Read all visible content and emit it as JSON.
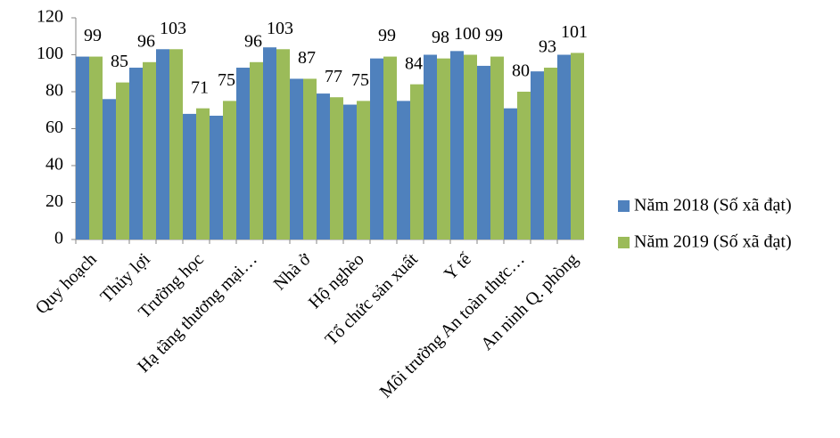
{
  "chart_data": {
    "type": "bar",
    "categories": [
      "Quy hoạch",
      null,
      "Thủy lợi",
      null,
      "Trường học",
      null,
      "Hạ tầng thương mại…",
      null,
      "Nhà ở",
      null,
      "Hộ nghèo",
      null,
      "Tổ chức sản xuất",
      null,
      "Y tế",
      null,
      "Môi trường An toàn thực…",
      null,
      "An ninh Q. phòng"
    ],
    "series": [
      {
        "name": "Năm 2018 (Số xã đạt)",
        "color": "#4f81bd",
        "values": [
          99,
          76,
          93,
          103,
          68,
          67,
          93,
          104,
          87,
          79,
          73,
          98,
          75,
          100,
          102,
          94,
          71,
          91,
          100
        ]
      },
      {
        "name": "Năm 2019 (Số xã đạt)",
        "color": "#9bbb59",
        "values": [
          99,
          85,
          96,
          103,
          71,
          75,
          96,
          103,
          87,
          77,
          75,
          99,
          84,
          98,
          100,
          99,
          80,
          93,
          101
        ],
        "data_labels": true
      }
    ],
    "ylim": [
      0,
      120
    ],
    "yticks": [
      0,
      20,
      40,
      60,
      80,
      100,
      120
    ],
    "grid": false,
    "legend": "right"
  }
}
